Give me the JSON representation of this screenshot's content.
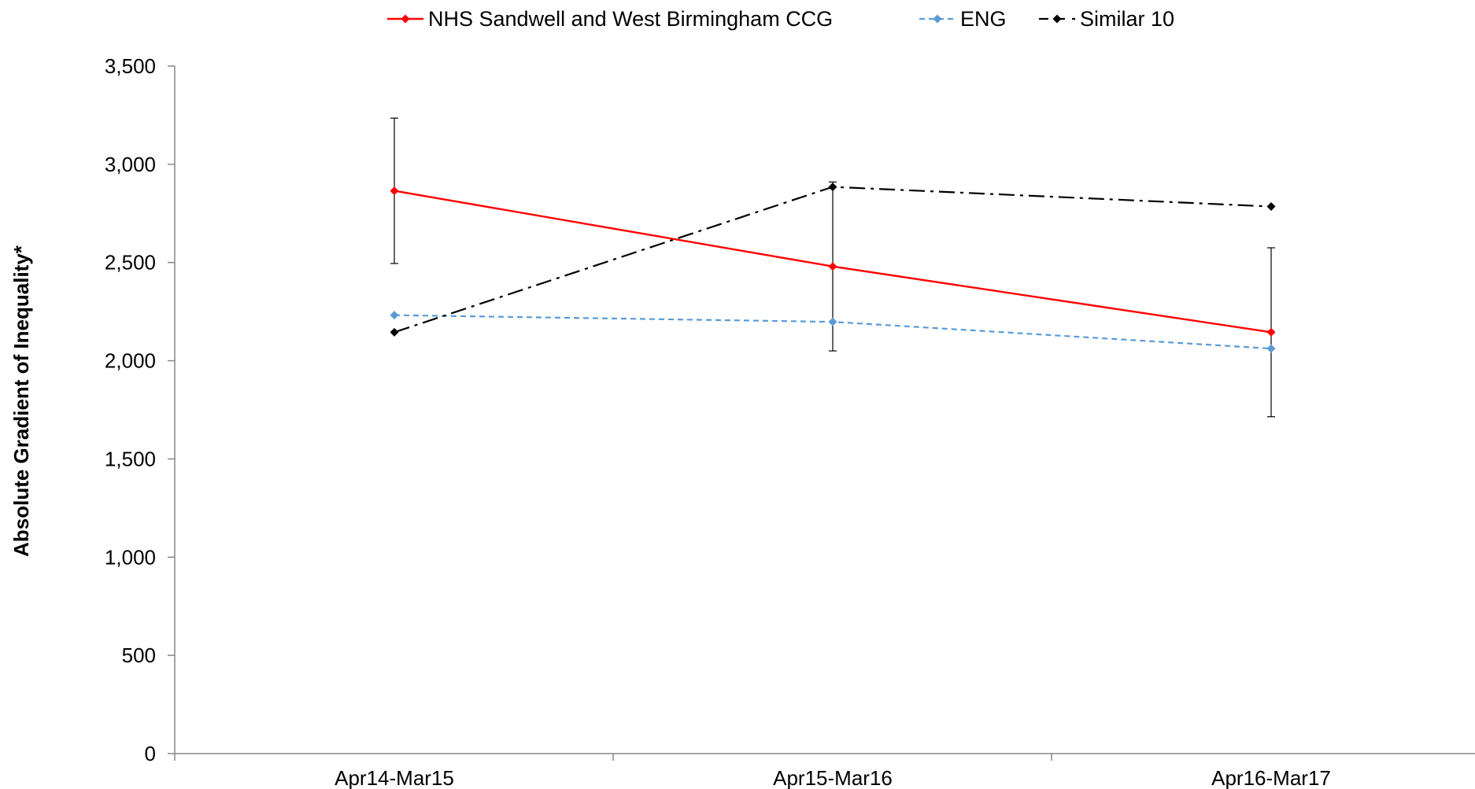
{
  "chart_data": {
    "type": "line",
    "title": "",
    "xlabel": "",
    "ylabel": "Absolute Gradient of Inequality*",
    "categories": [
      "Apr14-Mar15",
      "Apr15-Mar16",
      "Apr16-Mar17"
    ],
    "ylim": [
      0,
      3500
    ],
    "yticks": [
      0,
      500,
      1000,
      1500,
      2000,
      2500,
      3000,
      3500
    ],
    "ytick_labels": [
      "0",
      "500",
      "1,000",
      "1,500",
      "2,000",
      "2,500",
      "3,000",
      "3,500"
    ],
    "grid": false,
    "legend_position": "top",
    "series": [
      {
        "name": "NHS Sandwell and West Birmingham CCG",
        "values": [
          2865,
          2480,
          2145
        ],
        "error_low": [
          2495,
          2050,
          1715
        ],
        "error_high": [
          3235,
          2910,
          2575
        ],
        "color": "#ff0000",
        "line_style": "solid",
        "marker": "diamond"
      },
      {
        "name": "ENG",
        "values": [
          2232,
          2198,
          2062
        ],
        "color": "#5b9bd5",
        "line_style": "dashed",
        "marker": "diamond"
      },
      {
        "name": "Similar 10",
        "values": [
          2145,
          2885,
          2785
        ],
        "color": "#000000",
        "line_style": "dash-dot",
        "marker": "diamond"
      }
    ]
  }
}
